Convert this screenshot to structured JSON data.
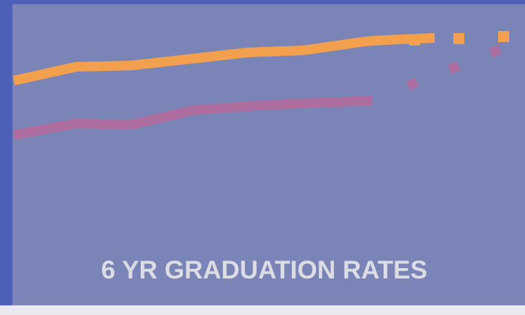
{
  "header": {
    "title": "6 YR GRADUATION RATES"
  }
}
